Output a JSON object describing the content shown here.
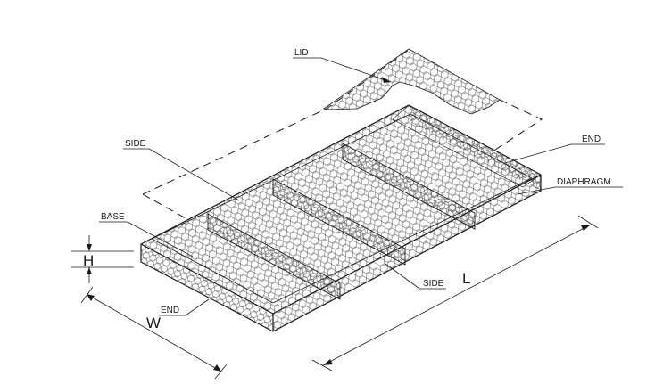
{
  "labels": {
    "lid": "LID",
    "side_top": "SIDE",
    "end_top": "END",
    "diaphragm": "DIAPHRAGM",
    "base": "BASE",
    "side_bottom": "SIDE",
    "end_bottom": "END"
  },
  "dimensions": {
    "height": "H",
    "width": "W",
    "length": "L"
  },
  "colors": {
    "ink": "#1a1a1a",
    "mesh": "#555555",
    "mesh_fill_top": "#f2f2f2",
    "mesh_fill_side": "#e4e4e4",
    "background": "#ffffff"
  }
}
